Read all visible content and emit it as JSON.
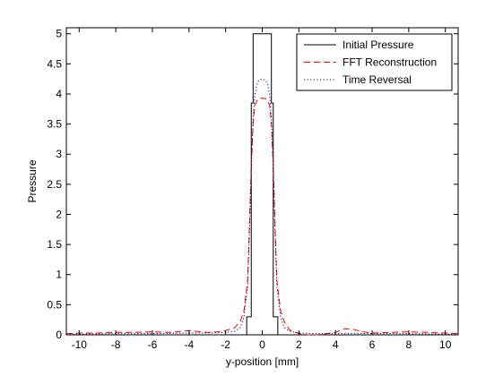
{
  "chart_data": {
    "type": "line",
    "xlabel": "y-position [mm]",
    "ylabel": "Pressure",
    "xlim": [
      -10.7,
      10.7
    ],
    "ylim": [
      0,
      5.1
    ],
    "xticks": [
      -10,
      -8,
      -6,
      -4,
      -2,
      0,
      2,
      4,
      6,
      8,
      10
    ],
    "yticks": [
      0,
      0.5,
      1,
      1.5,
      2,
      2.5,
      3,
      3.5,
      4,
      4.5,
      5
    ],
    "grid": false,
    "legend_position": "top-right",
    "series": [
      {
        "name": "Initial Pressure",
        "color": "#000000",
        "style": "solid",
        "x": [
          -10.7,
          -0.85,
          -0.85,
          -0.6,
          -0.6,
          -0.5,
          -0.5,
          0.5,
          0.5,
          0.6,
          0.6,
          0.85,
          0.85,
          10.7
        ],
        "y": [
          0,
          0,
          0.3,
          0.3,
          3.85,
          3.85,
          5,
          5,
          3.85,
          3.85,
          0.3,
          0.3,
          0,
          0
        ]
      },
      {
        "name": "FFT Reconstruction",
        "color": "#ff0000",
        "style": "dashed",
        "x": [
          -10.7,
          -10,
          -9,
          -8,
          -7,
          -6,
          -5,
          -4,
          -3,
          -2.5,
          -2,
          -1.5,
          -1.2,
          -1,
          -0.8,
          -0.7,
          -0.6,
          -0.5,
          -0.4,
          -0.3,
          -0.2,
          0,
          0.2,
          0.3,
          0.4,
          0.5,
          0.6,
          0.7,
          0.8,
          1,
          1.2,
          1.5,
          2,
          2.5,
          3,
          3.5,
          4,
          4.5,
          5,
          5.5,
          6,
          7,
          8,
          9,
          10,
          10.7
        ],
        "y": [
          0.02,
          0.03,
          0.03,
          0.04,
          0.04,
          0.05,
          0.04,
          0.07,
          0.04,
          0.05,
          0.07,
          0.12,
          0.22,
          0.4,
          0.9,
          1.8,
          2.8,
          3.5,
          3.82,
          3.88,
          3.92,
          3.93,
          3.92,
          3.88,
          3.82,
          3.5,
          2.8,
          1.8,
          0.9,
          0.4,
          0.22,
          0.08,
          0.02,
          -0.01,
          0.0,
          0.02,
          0.04,
          0.1,
          0.09,
          0.05,
          0.03,
          0.04,
          0.05,
          0.04,
          0.03,
          0.02
        ]
      },
      {
        "name": "Time Reversal",
        "color": "#000080",
        "style": "dotted",
        "x": [
          -10.7,
          -8,
          -6,
          -4,
          -3,
          -2,
          -1.5,
          -1.2,
          -1,
          -0.8,
          -0.7,
          -0.6,
          -0.5,
          -0.4,
          -0.3,
          -0.2,
          0,
          0.2,
          0.3,
          0.4,
          0.5,
          0.6,
          0.7,
          0.8,
          1,
          1.2,
          1.5,
          2,
          3,
          4,
          6,
          8,
          10.7
        ],
        "y": [
          0.01,
          0.02,
          0.02,
          0.03,
          0.03,
          0.04,
          0.06,
          0.12,
          0.3,
          0.8,
          1.7,
          2.8,
          3.6,
          4.0,
          4.15,
          4.22,
          4.25,
          4.22,
          4.15,
          4.0,
          3.6,
          2.8,
          1.7,
          0.8,
          0.3,
          0.12,
          0.06,
          0.03,
          0.02,
          0.02,
          0.02,
          0.02,
          0.01
        ]
      }
    ]
  }
}
